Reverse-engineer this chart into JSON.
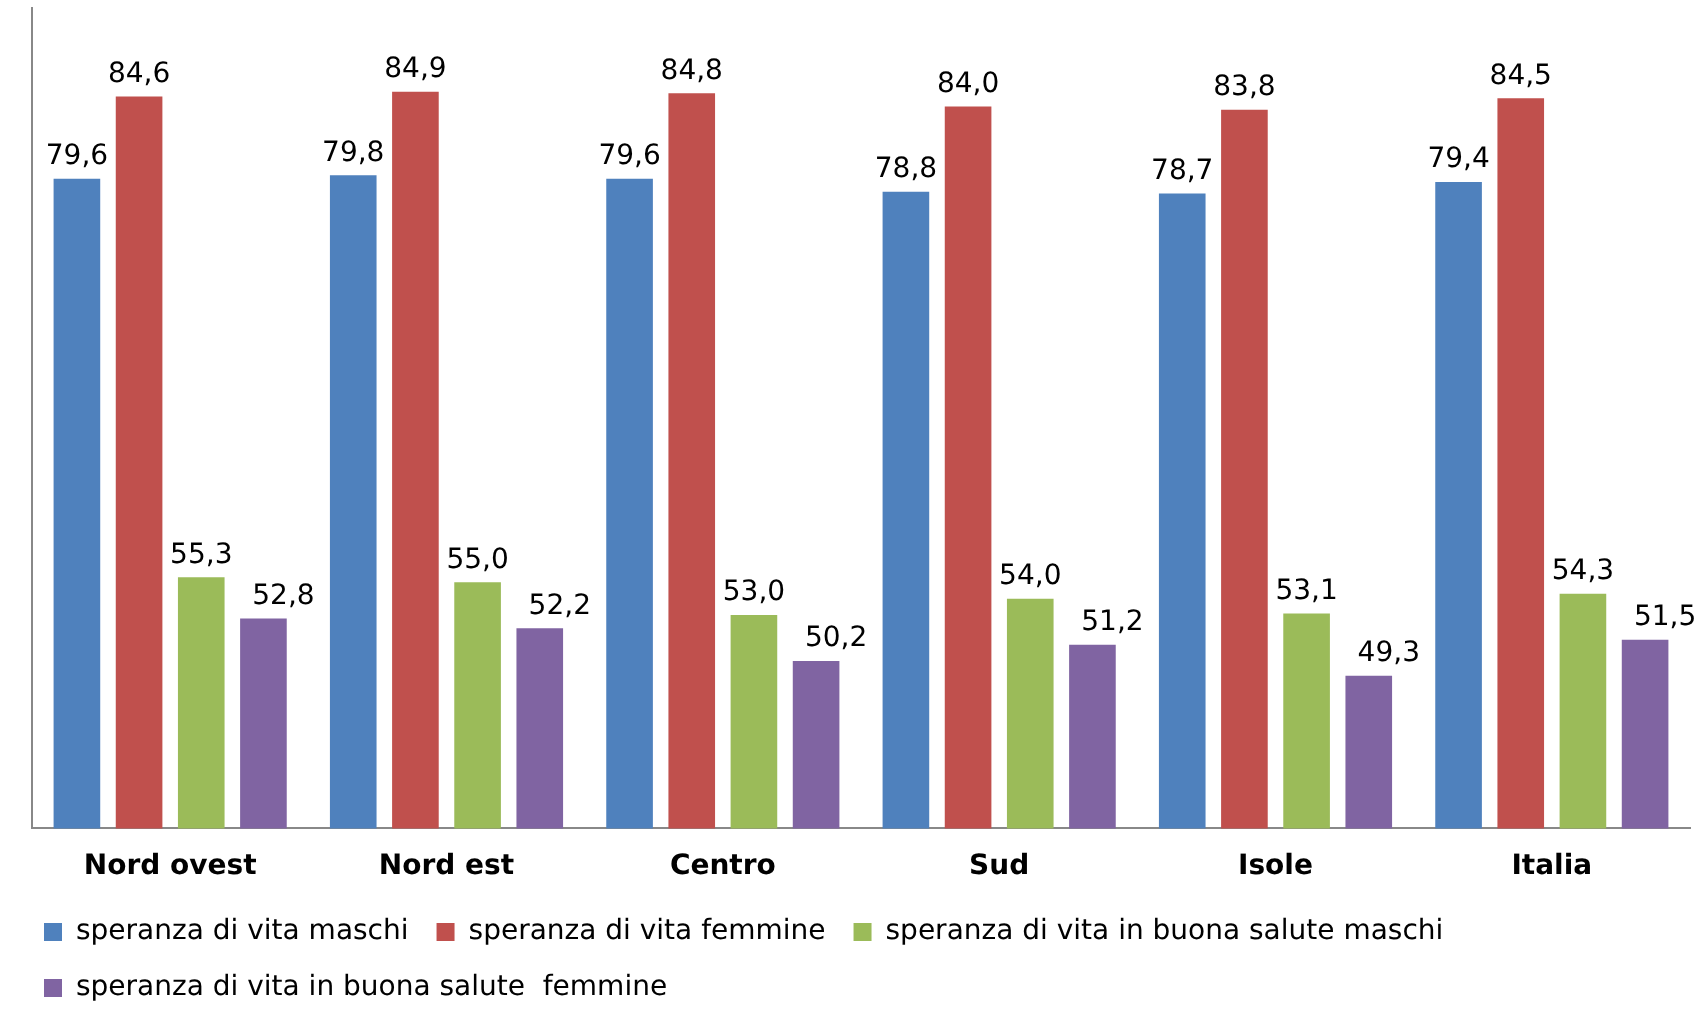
{
  "chart_data": {
    "type": "bar",
    "categories": [
      "Nord ovest",
      "Nord est",
      "Centro",
      "Sud",
      "Isole",
      "Italia"
    ],
    "series": [
      {
        "name": "speranza di vita maschi",
        "color": "#4f81bd",
        "values": [
          79.6,
          79.8,
          79.6,
          78.8,
          78.7,
          79.4
        ],
        "value_labels": [
          "79,6",
          "79,8",
          "79,6",
          "78,8",
          "78,7",
          "79,4"
        ]
      },
      {
        "name": "speranza di vita femmine",
        "color": "#c0504d",
        "values": [
          84.6,
          84.9,
          84.8,
          84.0,
          83.8,
          84.5
        ],
        "value_labels": [
          "84,6",
          "84,9",
          "84,8",
          "84,0",
          "83,8",
          "84,5"
        ]
      },
      {
        "name": "speranza di vita in buona salute maschi",
        "color": "#9bbb59",
        "values": [
          55.3,
          55.0,
          53.0,
          54.0,
          53.1,
          54.3
        ],
        "value_labels": [
          "55,3",
          "55,0",
          "53,0",
          "54,0",
          "53,1",
          "54,3"
        ]
      },
      {
        "name": "speranza di vita in buona salute  femmine",
        "color": "#8064a2",
        "values": [
          52.8,
          52.2,
          50.2,
          51.2,
          49.3,
          51.5
        ],
        "value_labels": [
          "52,8",
          "52,2",
          "50,2",
          "51,2",
          "49,3",
          "51,5"
        ]
      }
    ],
    "ylim": [
      40,
      90
    ],
    "tick_labels": "x",
    "grid": false,
    "legend": "bottom"
  }
}
